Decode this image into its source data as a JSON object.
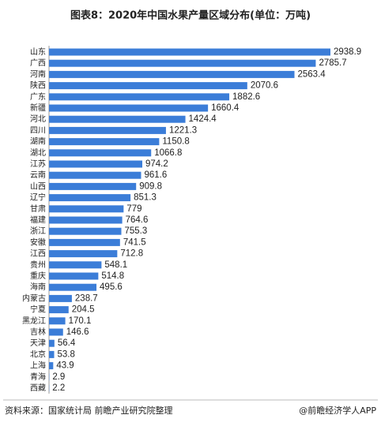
{
  "chart_data": {
    "type": "bar",
    "orientation": "horizontal",
    "title": "图表8：2020年中国水果产量区域分布(单位：万吨)",
    "categories": [
      "山东",
      "广西",
      "河南",
      "陕西",
      "广东",
      "新疆",
      "河北",
      "四川",
      "湖南",
      "湖北",
      "江苏",
      "云南",
      "山西",
      "辽宁",
      "甘肃",
      "福建",
      "浙江",
      "安徽",
      "江西",
      "贵州",
      "重庆",
      "海南",
      "内蒙古",
      "宁夏",
      "黑龙江",
      "吉林",
      "天津",
      "北京",
      "上海",
      "青海",
      "西藏"
    ],
    "values": [
      2938.9,
      2785.7,
      2563.4,
      2070.6,
      1882.6,
      1660.4,
      1424.4,
      1221.3,
      1150.8,
      1066.8,
      974.2,
      961.6,
      909.8,
      851.3,
      779,
      764.6,
      755.3,
      741.5,
      712.8,
      548.1,
      514.8,
      495.6,
      238.7,
      204.5,
      170.1,
      146.6,
      56.4,
      53.8,
      43.9,
      2.9,
      2.2
    ],
    "color": "#3b7dd8",
    "source": "资料来源：国家统计局 前瞻产业研究院整理",
    "credit": "@前瞻经济学人APP"
  }
}
